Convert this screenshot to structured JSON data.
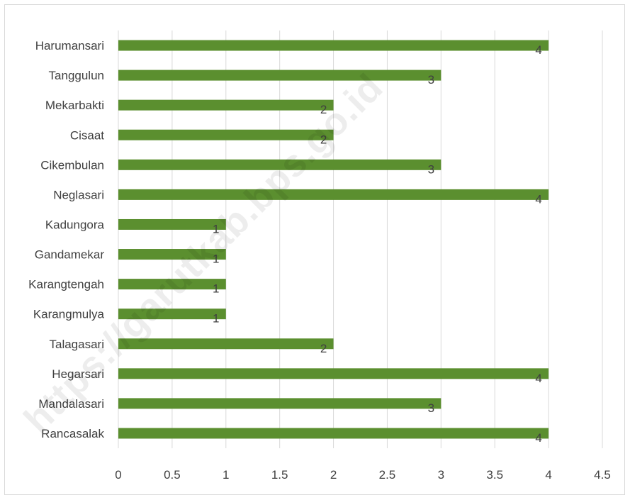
{
  "watermark": "https://garutkab.bps.go.id",
  "colors": {
    "bar": "#5b8f2f",
    "grid": "#d9d9d9",
    "text": "#404040"
  },
  "chart_data": {
    "type": "bar",
    "orientation": "horizontal",
    "title": "",
    "xlabel": "",
    "ylabel": "",
    "categories": [
      "Harumansari",
      "Tanggulun",
      "Mekarbakti",
      "Cisaat",
      "Cikembulan",
      "Neglasari",
      "Kadungora",
      "Gandamekar",
      "Karangtengah",
      "Karangmulya",
      "Talagasari",
      "Hegarsari",
      "Mandalasari",
      "Rancasalak"
    ],
    "values": [
      4,
      3,
      2,
      2,
      3,
      4,
      1,
      1,
      1,
      1,
      2,
      4,
      3,
      4
    ],
    "xlim": [
      0,
      4.5
    ],
    "xticks": [
      "0",
      "0.5",
      "1",
      "1.5",
      "2",
      "2.5",
      "3",
      "3.5",
      "4",
      "4.5"
    ],
    "grid": true,
    "data_labels": true,
    "legend": "none"
  }
}
